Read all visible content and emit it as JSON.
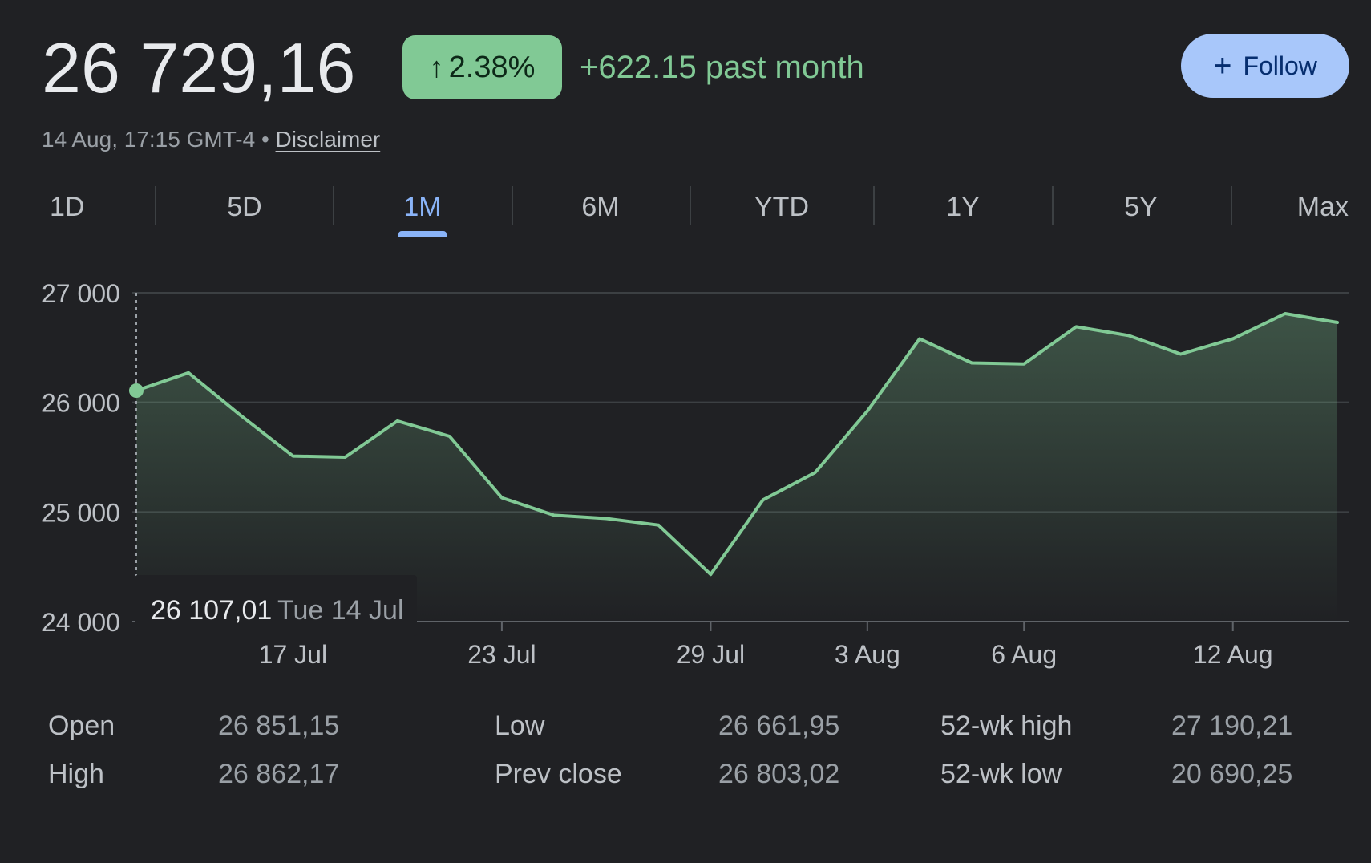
{
  "header": {
    "price": "26 729,16",
    "change_pct": "2.38%",
    "change_abs": "+622.15 past month",
    "timestamp": "14 Aug, 17:15 GMT-4",
    "separator": "•",
    "disclaimer": "Disclaimer",
    "follow_label": "Follow"
  },
  "tabs": [
    {
      "label": "1D",
      "active": false
    },
    {
      "label": "5D",
      "active": false
    },
    {
      "label": "1M",
      "active": true
    },
    {
      "label": "6M",
      "active": false
    },
    {
      "label": "YTD",
      "active": false
    },
    {
      "label": "1Y",
      "active": false
    },
    {
      "label": "5Y",
      "active": false
    },
    {
      "label": "Max",
      "active": false
    }
  ],
  "tooltip": {
    "value": "26 107,01",
    "date": "Tue 14 Jul"
  },
  "colors": {
    "background": "#202124",
    "line": "#81c995",
    "accent": "#8ab4f8",
    "follow_bg": "#a8c7fa"
  },
  "chart_data": {
    "type": "area",
    "x": [
      "14 Jul",
      "15 Jul",
      "16 Jul",
      "17 Jul",
      "20 Jul",
      "21 Jul",
      "22 Jul",
      "23 Jul",
      "24 Jul",
      "27 Jul",
      "28 Jul",
      "29 Jul",
      "30 Jul",
      "31 Jul",
      "3 Aug",
      "4 Aug",
      "5 Aug",
      "6 Aug",
      "7 Aug",
      "10 Aug",
      "11 Aug",
      "12 Aug",
      "13 Aug",
      "14 Aug"
    ],
    "values": [
      26107,
      26270,
      25880,
      25510,
      25500,
      25830,
      25690,
      25130,
      24970,
      24940,
      24880,
      24430,
      25110,
      25360,
      25920,
      26580,
      26360,
      26350,
      26690,
      26610,
      26440,
      26580,
      26810,
      26729
    ],
    "x_tick_labels": [
      "17 Jul",
      "23 Jul",
      "29 Jul",
      "3 Aug",
      "6 Aug",
      "12 Aug"
    ],
    "x_tick_index": [
      3,
      7,
      11,
      14,
      17,
      21
    ],
    "y_ticks": [
      24000,
      25000,
      26000,
      27000
    ],
    "y_tick_labels": [
      "24 000",
      "25 000",
      "26 000",
      "27 000"
    ],
    "ylim": [
      24000,
      27000
    ],
    "grid": true,
    "title": "",
    "xlabel": "",
    "ylabel": ""
  },
  "stats": [
    {
      "label": "Open",
      "value": "26 851,15"
    },
    {
      "label": "High",
      "value": "26 862,17"
    },
    {
      "label": "Low",
      "value": "26 661,95"
    },
    {
      "label": "Prev close",
      "value": "26 803,02"
    },
    {
      "label": "52-wk high",
      "value": "27 190,21"
    },
    {
      "label": "52-wk low",
      "value": "20 690,25"
    }
  ]
}
